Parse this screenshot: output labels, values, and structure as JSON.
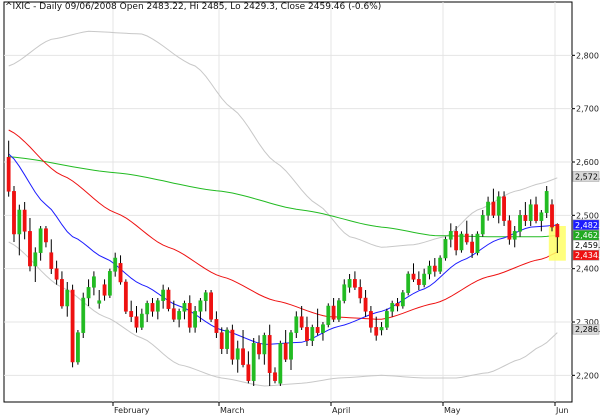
{
  "chart_data": {
    "type": "candlestick",
    "title": "^IXIC - Daily 09/06/2008 Open 2483.22, Hi 2485, Lo 2429.3, Close 2459.46 (-0.6%)",
    "ylim": [
      2150,
      2900
    ],
    "y_ticks": [
      "2,200",
      "2,300",
      "2,400",
      "2,500",
      "2,600",
      "2,700",
      "2,800"
    ],
    "y_tick_values": [
      2200,
      2300,
      2400,
      2500,
      2600,
      2700,
      2800
    ],
    "month_ticks": [
      {
        "label": "February",
        "index": 20
      },
      {
        "label": "March",
        "index": 40
      },
      {
        "label": "April",
        "index": 61
      },
      {
        "label": "May",
        "index": 82
      },
      {
        "label": "Jun",
        "index": 103
      }
    ],
    "price_tags": [
      {
        "value_label": "2,572.93",
        "value": 2572.93,
        "bg": "#d8d8d8",
        "fg": "#000000"
      },
      {
        "value_label": "2,482.09",
        "value": 2482.09,
        "bg": "#1c1cff",
        "fg": "#ffffff"
      },
      {
        "value_label": "2,462.75",
        "value": 2462.75,
        "bg": "#22aa22",
        "fg": "#ffffff"
      },
      {
        "value_label": "2,459.46",
        "value": 2459.46,
        "bg": "#ffffff",
        "fg": "#000000"
      },
      {
        "value_label": "2,434.59",
        "value": 2434.59,
        "bg": "#ee1111",
        "fg": "#ffffff"
      },
      {
        "value_label": "2,286.45",
        "value": 2286.45,
        "bg": "#d8d8d8",
        "fg": "#000000"
      }
    ],
    "candles": [
      [
        2609,
        2640,
        2535,
        2545
      ],
      [
        2545,
        2555,
        2450,
        2465
      ],
      [
        2465,
        2520,
        2425,
        2510
      ],
      [
        2510,
        2525,
        2455,
        2470
      ],
      [
        2470,
        2495,
        2395,
        2405
      ],
      [
        2405,
        2440,
        2375,
        2430
      ],
      [
        2430,
        2480,
        2415,
        2475
      ],
      [
        2475,
        2480,
        2440,
        2450
      ],
      [
        2430,
        2455,
        2390,
        2400
      ],
      [
        2400,
        2415,
        2370,
        2380
      ],
      [
        2380,
        2395,
        2325,
        2330
      ],
      [
        2330,
        2375,
        2310,
        2360
      ],
      [
        2360,
        2370,
        2215,
        2225
      ],
      [
        2225,
        2285,
        2220,
        2280
      ],
      [
        2280,
        2355,
        2270,
        2345
      ],
      [
        2345,
        2380,
        2330,
        2365
      ],
      [
        2365,
        2395,
        2350,
        2385
      ],
      [
        2335,
        2360,
        2325,
        2340
      ],
      [
        2370,
        2380,
        2340,
        2350
      ],
      [
        2350,
        2400,
        2345,
        2395
      ],
      [
        2395,
        2430,
        2385,
        2420
      ],
      [
        2410,
        2425,
        2370,
        2375
      ],
      [
        2375,
        2380,
        2315,
        2320
      ],
      [
        2320,
        2340,
        2300,
        2310
      ],
      [
        2310,
        2330,
        2280,
        2290
      ],
      [
        2290,
        2325,
        2285,
        2315
      ],
      [
        2315,
        2340,
        2300,
        2335
      ],
      [
        2335,
        2345,
        2310,
        2320
      ],
      [
        2320,
        2345,
        2305,
        2340
      ],
      [
        2340,
        2370,
        2325,
        2360
      ],
      [
        2360,
        2365,
        2320,
        2325
      ],
      [
        2325,
        2340,
        2300,
        2305
      ],
      [
        2305,
        2325,
        2290,
        2320
      ],
      [
        2320,
        2340,
        2305,
        2335
      ],
      [
        2335,
        2350,
        2280,
        2290
      ],
      [
        2290,
        2330,
        2280,
        2320
      ],
      [
        2320,
        2345,
        2300,
        2340
      ],
      [
        2340,
        2360,
        2320,
        2355
      ],
      [
        2355,
        2360,
        2300,
        2305
      ],
      [
        2305,
        2320,
        2270,
        2280
      ],
      [
        2280,
        2290,
        2240,
        2250
      ],
      [
        2250,
        2290,
        2240,
        2285
      ],
      [
        2285,
        2295,
        2220,
        2230
      ],
      [
        2230,
        2265,
        2205,
        2250
      ],
      [
        2250,
        2285,
        2215,
        2220
      ],
      [
        2220,
        2245,
        2185,
        2190
      ],
      [
        2190,
        2270,
        2180,
        2260
      ],
      [
        2260,
        2275,
        2230,
        2240
      ],
      [
        2240,
        2280,
        2220,
        2275
      ],
      [
        2275,
        2295,
        2180,
        2205
      ],
      [
        2205,
        2215,
        2185,
        2190
      ],
      [
        2185,
        2265,
        2180,
        2260
      ],
      [
        2260,
        2285,
        2225,
        2230
      ],
      [
        2230,
        2285,
        2210,
        2280
      ],
      [
        2280,
        2320,
        2270,
        2310
      ],
      [
        2310,
        2330,
        2285,
        2290
      ],
      [
        2290,
        2310,
        2255,
        2265
      ],
      [
        2265,
        2295,
        2255,
        2290
      ],
      [
        2290,
        2325,
        2275,
        2280
      ],
      [
        2280,
        2300,
        2265,
        2295
      ],
      [
        2295,
        2335,
        2290,
        2330
      ],
      [
        2330,
        2345,
        2300,
        2305
      ],
      [
        2305,
        2345,
        2300,
        2340
      ],
      [
        2340,
        2380,
        2335,
        2370
      ],
      [
        2365,
        2390,
        2355,
        2380
      ],
      [
        2380,
        2395,
        2360,
        2365
      ],
      [
        2365,
        2380,
        2335,
        2345
      ],
      [
        2345,
        2360,
        2310,
        2320
      ],
      [
        2320,
        2330,
        2280,
        2290
      ],
      [
        2290,
        2310,
        2265,
        2275
      ],
      [
        2285,
        2300,
        2275,
        2290
      ],
      [
        2290,
        2325,
        2285,
        2320
      ],
      [
        2320,
        2340,
        2310,
        2335
      ],
      [
        2335,
        2345,
        2320,
        2330
      ],
      [
        2330,
        2360,
        2325,
        2355
      ],
      [
        2355,
        2395,
        2350,
        2390
      ],
      [
        2390,
        2410,
        2375,
        2380
      ],
      [
        2380,
        2395,
        2360,
        2370
      ],
      [
        2370,
        2400,
        2365,
        2390
      ],
      [
        2390,
        2415,
        2380,
        2405
      ],
      [
        2405,
        2420,
        2385,
        2395
      ],
      [
        2395,
        2425,
        2390,
        2420
      ],
      [
        2420,
        2460,
        2415,
        2455
      ],
      [
        2455,
        2485,
        2440,
        2470
      ],
      [
        2470,
        2480,
        2425,
        2435
      ],
      [
        2435,
        2470,
        2430,
        2465
      ],
      [
        2465,
        2490,
        2445,
        2450
      ],
      [
        2450,
        2465,
        2420,
        2430
      ],
      [
        2430,
        2470,
        2425,
        2465
      ],
      [
        2465,
        2510,
        2460,
        2500
      ],
      [
        2500,
        2535,
        2490,
        2525
      ],
      [
        2525,
        2550,
        2495,
        2500
      ],
      [
        2500,
        2545,
        2485,
        2535
      ],
      [
        2535,
        2545,
        2480,
        2490
      ],
      [
        2490,
        2500,
        2445,
        2455
      ],
      [
        2455,
        2480,
        2440,
        2470
      ],
      [
        2470,
        2510,
        2460,
        2500
      ],
      [
        2500,
        2525,
        2480,
        2490
      ],
      [
        2490,
        2530,
        2480,
        2520
      ],
      [
        2520,
        2535,
        2485,
        2490
      ],
      [
        2490,
        2510,
        2470,
        2505
      ],
      [
        2505,
        2555,
        2495,
        2545
      ],
      [
        2520,
        2530,
        2470,
        2478
      ],
      [
        2483.22,
        2485,
        2429.3,
        2459.46
      ]
    ],
    "ema_red_control": [
      [
        0,
        2660
      ],
      [
        10,
        2575
      ],
      [
        20,
        2505
      ],
      [
        30,
        2440
      ],
      [
        40,
        2385
      ],
      [
        50,
        2340
      ],
      [
        60,
        2310
      ],
      [
        70,
        2305
      ],
      [
        80,
        2335
      ],
      [
        90,
        2385
      ],
      [
        100,
        2418
      ],
      [
        104,
        2434.59
      ]
    ],
    "sma_blue_control": [
      [
        0,
        2615
      ],
      [
        7,
        2520
      ],
      [
        12,
        2460
      ],
      [
        18,
        2420
      ],
      [
        25,
        2370
      ],
      [
        32,
        2330
      ],
      [
        40,
        2285
      ],
      [
        48,
        2258
      ],
      [
        55,
        2262
      ],
      [
        62,
        2292
      ],
      [
        70,
        2320
      ],
      [
        78,
        2362
      ],
      [
        85,
        2415
      ],
      [
        92,
        2455
      ],
      [
        98,
        2478
      ],
      [
        104,
        2482.09
      ]
    ],
    "sma_green_control": [
      [
        0,
        2610
      ],
      [
        20,
        2580
      ],
      [
        40,
        2545
      ],
      [
        55,
        2510
      ],
      [
        70,
        2478
      ],
      [
        80,
        2462
      ],
      [
        90,
        2460
      ],
      [
        100,
        2460
      ],
      [
        104,
        2462.75
      ]
    ],
    "bb_upper_control": [
      [
        0,
        2780
      ],
      [
        8,
        2830
      ],
      [
        15,
        2845
      ],
      [
        25,
        2840
      ],
      [
        35,
        2780
      ],
      [
        42,
        2700
      ],
      [
        50,
        2600
      ],
      [
        58,
        2520
      ],
      [
        64,
        2460
      ],
      [
        70,
        2440
      ],
      [
        76,
        2445
      ],
      [
        82,
        2460
      ],
      [
        88,
        2510
      ],
      [
        95,
        2545
      ],
      [
        100,
        2560
      ],
      [
        104,
        2572.93
      ]
    ],
    "bb_lower_control": [
      [
        0,
        2450
      ],
      [
        10,
        2365
      ],
      [
        18,
        2310
      ],
      [
        25,
        2270
      ],
      [
        32,
        2220
      ],
      [
        40,
        2195
      ],
      [
        48,
        2180
      ],
      [
        55,
        2185
      ],
      [
        62,
        2195
      ],
      [
        70,
        2200
      ],
      [
        78,
        2195
      ],
      [
        84,
        2195
      ],
      [
        90,
        2205
      ],
      [
        96,
        2230
      ],
      [
        100,
        2255
      ],
      [
        104,
        2286.45
      ]
    ],
    "colors": {
      "up_candle": "#22bb22",
      "down_candle": "#ee1111",
      "ema_line": "#ee1111",
      "sma_short_line": "#1c1cff",
      "sma_long_line": "#22bb22",
      "bollinger": "#c8c8c8",
      "highlight": "#ffff66",
      "grid": "#e4e4e4"
    }
  }
}
